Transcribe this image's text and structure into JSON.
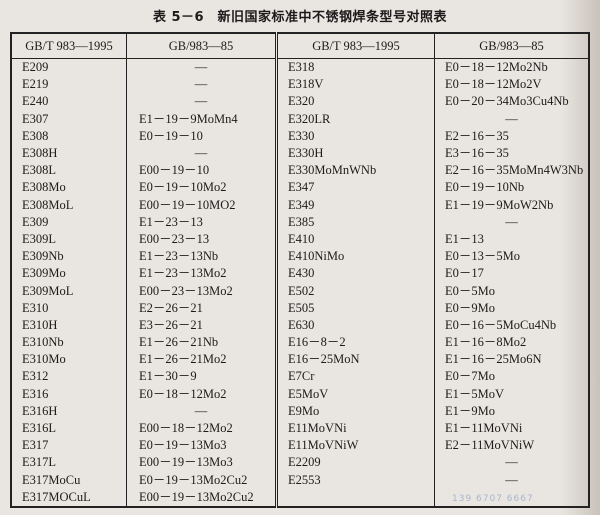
{
  "title": "表 5－6　新旧国家标准中不锈钢焊条型号对照表",
  "headers": [
    "GB/T 983—1995",
    "GB/983—85",
    "GB/T 983—1995",
    "GB/983—85"
  ],
  "rows": [
    [
      "E209",
      "—",
      "E318",
      "E0－18－12Mo2Nb"
    ],
    [
      "E219",
      "—",
      "E318V",
      "E0－18－12Mo2V"
    ],
    [
      "E240",
      "—",
      "E320",
      "E0－20－34Mo3Cu4Nb"
    ],
    [
      "E307",
      "E1－19－9MoMn4",
      "E320LR",
      "—"
    ],
    [
      "E308",
      "E0－19－10",
      "E330",
      "E2－16－35"
    ],
    [
      "E308H",
      "—",
      "E330H",
      "E3－16－35"
    ],
    [
      "E308L",
      "E00－19－10",
      "E330MoMnWNb",
      "E2－16－35MoMn4W3Nb"
    ],
    [
      "E308Mo",
      "E0－19－10Mo2",
      "E347",
      "E0－19－10Nb"
    ],
    [
      "E308MoL",
      "E00－19－10MO2",
      "E349",
      "E1－19－9MoW2Nb"
    ],
    [
      "E309",
      "E1－23－13",
      "E385",
      "—"
    ],
    [
      "E309L",
      "E00－23－13",
      "E410",
      "E1－13"
    ],
    [
      "E309Nb",
      "E1－23－13Nb",
      "E410NiMo",
      "E0－13－5Mo"
    ],
    [
      "E309Mo",
      "E1－23－13Mo2",
      "E430",
      "E0－17"
    ],
    [
      "E309MoL",
      "E00－23－13Mo2",
      "E502",
      "E0－5Mo"
    ],
    [
      "E310",
      "E2－26－21",
      "E505",
      "E0－9Mo"
    ],
    [
      "E310H",
      "E3－26－21",
      "E630",
      "E0－16－5MoCu4Nb"
    ],
    [
      "E310Nb",
      "E1－26－21Nb",
      "E16－8－2",
      "E1－16－8Mo2"
    ],
    [
      "E310Mo",
      "E1－26－21Mo2",
      "E16－25MoN",
      "E1－16－25Mo6N"
    ],
    [
      "E312",
      "E1－30－9",
      "E7Cr",
      "E0－7Mo"
    ],
    [
      "E316",
      "E0－18－12Mo2",
      "E5MoV",
      "E1－5MoV"
    ],
    [
      "E316H",
      "—",
      "E9Mo",
      "E1－9Mo"
    ],
    [
      "E316L",
      "E00－18－12Mo2",
      "E11MoVNi",
      "E1－11MoVNi"
    ],
    [
      "E317",
      "E0－19－13Mo3",
      "E11MoVNiW",
      "E2－11MoVNiW"
    ],
    [
      "E317L",
      "E00－19－13Mo3",
      "E2209",
      "—"
    ],
    [
      "E317MoCu",
      "E0－19－13Mo2Cu2",
      "E2553",
      "—"
    ],
    [
      "E317MOCuL",
      "E00－19－13Mo2Cu2",
      "",
      ""
    ]
  ],
  "watermark": "139 6707 6667"
}
